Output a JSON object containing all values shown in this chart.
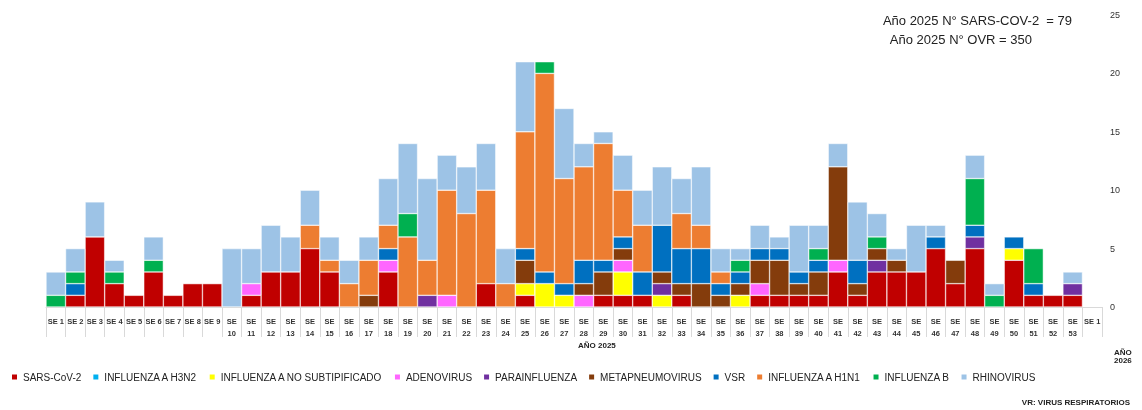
{
  "chart_data": {
    "type": "bar",
    "stacked": true,
    "categories": [
      "SE 1",
      "SE 2",
      "SE 3",
      "SE 4",
      "SE 5",
      "SE 6",
      "SE 7",
      "SE 8",
      "SE 9",
      "SE 10",
      "SE 11",
      "SE 12",
      "SE 13",
      "SE 14",
      "SE 15",
      "SE 16",
      "SE 17",
      "SE 18",
      "SE 19",
      "SE 20",
      "SE 21",
      "SE 22",
      "SE 23",
      "SE 24",
      "SE 25",
      "SE 26",
      "SE 27",
      "SE 28",
      "SE 29",
      "SE 30",
      "SE 31",
      "SE 32",
      "SE 33",
      "SE 34",
      "SE 35",
      "SE 36",
      "SE 37",
      "SE 38",
      "SE 39",
      "SE 40",
      "SE 41",
      "SE 42",
      "SE 43",
      "SE 44",
      "SE 45",
      "SE 46",
      "SE 47",
      "SE 48",
      "SE 49",
      "SE 50",
      "SE 51",
      "SE 52",
      "SE 53",
      "SE 1"
    ],
    "series": [
      {
        "name": "SARS-CoV-2",
        "color": "#c00000",
        "values": [
          null,
          1,
          6,
          2,
          1,
          3,
          1,
          2,
          2,
          null,
          1,
          3,
          3,
          5,
          3,
          null,
          null,
          3,
          null,
          null,
          null,
          null,
          2,
          null,
          1,
          null,
          null,
          null,
          1,
          1,
          1,
          null,
          1,
          null,
          null,
          null,
          1,
          1,
          1,
          1,
          3,
          1,
          3,
          3,
          3,
          5,
          2,
          5,
          null,
          4,
          1,
          1,
          1,
          null
        ]
      },
      {
        "name": "INFLUENZA A H3N2",
        "color": "#00b0f0",
        "values": [
          null,
          null,
          null,
          null,
          null,
          null,
          null,
          null,
          null,
          null,
          null,
          null,
          null,
          null,
          null,
          null,
          null,
          null,
          null,
          null,
          null,
          null,
          null,
          null,
          null,
          null,
          null,
          null,
          null,
          null,
          null,
          null,
          null,
          null,
          null,
          null,
          null,
          null,
          null,
          null,
          null,
          null,
          null,
          null,
          null,
          null,
          null,
          null,
          null,
          null,
          null,
          null,
          null,
          null
        ]
      },
      {
        "name": "INFLUENZA A NO SUBTIPIFICADO",
        "color": "#ffff00",
        "values": [
          null,
          null,
          null,
          null,
          null,
          null,
          null,
          null,
          null,
          null,
          null,
          null,
          null,
          null,
          null,
          null,
          null,
          null,
          null,
          null,
          null,
          null,
          null,
          null,
          1,
          2,
          1,
          null,
          null,
          2,
          null,
          1,
          null,
          null,
          null,
          1,
          null,
          null,
          null,
          null,
          null,
          null,
          null,
          null,
          null,
          null,
          null,
          null,
          null,
          1,
          null,
          null,
          null,
          null
        ]
      },
      {
        "name": "ADENOVIRUS",
        "color": "#ff66ff",
        "values": [
          null,
          null,
          null,
          null,
          null,
          null,
          null,
          null,
          null,
          null,
          1,
          null,
          null,
          null,
          null,
          null,
          null,
          1,
          null,
          null,
          1,
          null,
          null,
          null,
          null,
          null,
          null,
          1,
          null,
          1,
          null,
          null,
          null,
          null,
          null,
          null,
          1,
          null,
          null,
          null,
          1,
          null,
          null,
          null,
          null,
          null,
          null,
          null,
          null,
          null,
          null,
          null,
          null,
          null
        ]
      },
      {
        "name": "PARAINFLUENZA",
        "color": "#7030a0",
        "values": [
          null,
          null,
          null,
          null,
          null,
          null,
          null,
          null,
          null,
          null,
          null,
          null,
          null,
          null,
          null,
          null,
          null,
          null,
          null,
          1,
          null,
          null,
          null,
          null,
          null,
          null,
          null,
          null,
          null,
          null,
          null,
          1,
          null,
          null,
          null,
          null,
          null,
          null,
          null,
          null,
          null,
          null,
          1,
          null,
          null,
          null,
          null,
          1,
          null,
          null,
          null,
          null,
          1,
          null
        ]
      },
      {
        "name": "METAPNEUMOVIRUS",
        "color": "#843c0c",
        "values": [
          null,
          null,
          null,
          null,
          null,
          null,
          null,
          null,
          null,
          null,
          null,
          null,
          null,
          null,
          null,
          null,
          1,
          null,
          null,
          null,
          null,
          null,
          null,
          null,
          2,
          null,
          null,
          1,
          2,
          1,
          null,
          1,
          1,
          2,
          1,
          1,
          2,
          3,
          1,
          2,
          8,
          1,
          1,
          1,
          null,
          null,
          2,
          null,
          null,
          null,
          null,
          null,
          null,
          null
        ]
      },
      {
        "name": "VSR",
        "color": "#0070c0",
        "values": [
          null,
          1,
          null,
          null,
          null,
          null,
          null,
          null,
          null,
          null,
          null,
          null,
          null,
          null,
          null,
          null,
          null,
          1,
          null,
          null,
          null,
          null,
          null,
          null,
          1,
          1,
          1,
          2,
          1,
          1,
          2,
          4,
          3,
          3,
          1,
          1,
          1,
          1,
          1,
          1,
          null,
          2,
          null,
          null,
          null,
          1,
          null,
          1,
          null,
          1,
          1,
          null,
          null,
          null
        ]
      },
      {
        "name": "INFLUENZA A H1N1",
        "color": "#ed7d31",
        "values": [
          null,
          null,
          null,
          null,
          null,
          null,
          null,
          null,
          null,
          null,
          null,
          null,
          null,
          2,
          1,
          2,
          3,
          2,
          6,
          3,
          9,
          8,
          8,
          2,
          10,
          17,
          9,
          8,
          10,
          4,
          4,
          null,
          3,
          2,
          1,
          null,
          null,
          null,
          null,
          null,
          null,
          null,
          null,
          null,
          null,
          null,
          null,
          null,
          null,
          null,
          null,
          null,
          null,
          null
        ]
      },
      {
        "name": "INFLUENZA B",
        "color": "#00b050",
        "values": [
          1,
          1,
          null,
          1,
          null,
          1,
          null,
          null,
          null,
          null,
          null,
          null,
          null,
          null,
          null,
          null,
          null,
          null,
          2,
          null,
          null,
          null,
          null,
          null,
          null,
          1,
          null,
          null,
          null,
          null,
          null,
          null,
          null,
          null,
          null,
          1,
          null,
          null,
          null,
          1,
          null,
          null,
          1,
          null,
          null,
          null,
          null,
          4,
          1,
          null,
          3,
          null,
          null,
          null
        ]
      },
      {
        "name": "RHINOVIRUS",
        "color": "#9dc3e6",
        "values": [
          2,
          2,
          3,
          1,
          null,
          2,
          null,
          null,
          null,
          5,
          3,
          4,
          3,
          3,
          2,
          2,
          2,
          4,
          6,
          7,
          3,
          4,
          4,
          3,
          6,
          null,
          6,
          2,
          1,
          3,
          3,
          5,
          3,
          5,
          2,
          1,
          2,
          1,
          4,
          2,
          2,
          5,
          2,
          1,
          4,
          1,
          null,
          2,
          1,
          null,
          null,
          null,
          1,
          null
        ]
      }
    ],
    "ylim": [
      0,
      25
    ],
    "yticks": [
      0,
      5,
      10,
      15,
      20,
      25
    ],
    "grid": false,
    "legend": "bottom",
    "annotations": [
      "Año 2025 N° SARS-COV-2  = 79",
      "Año 2025 N° OVR = 350",
      "AÑO 2025",
      "AÑO 2026",
      "VR: VIRUS RESPIRATORIOS"
    ]
  }
}
